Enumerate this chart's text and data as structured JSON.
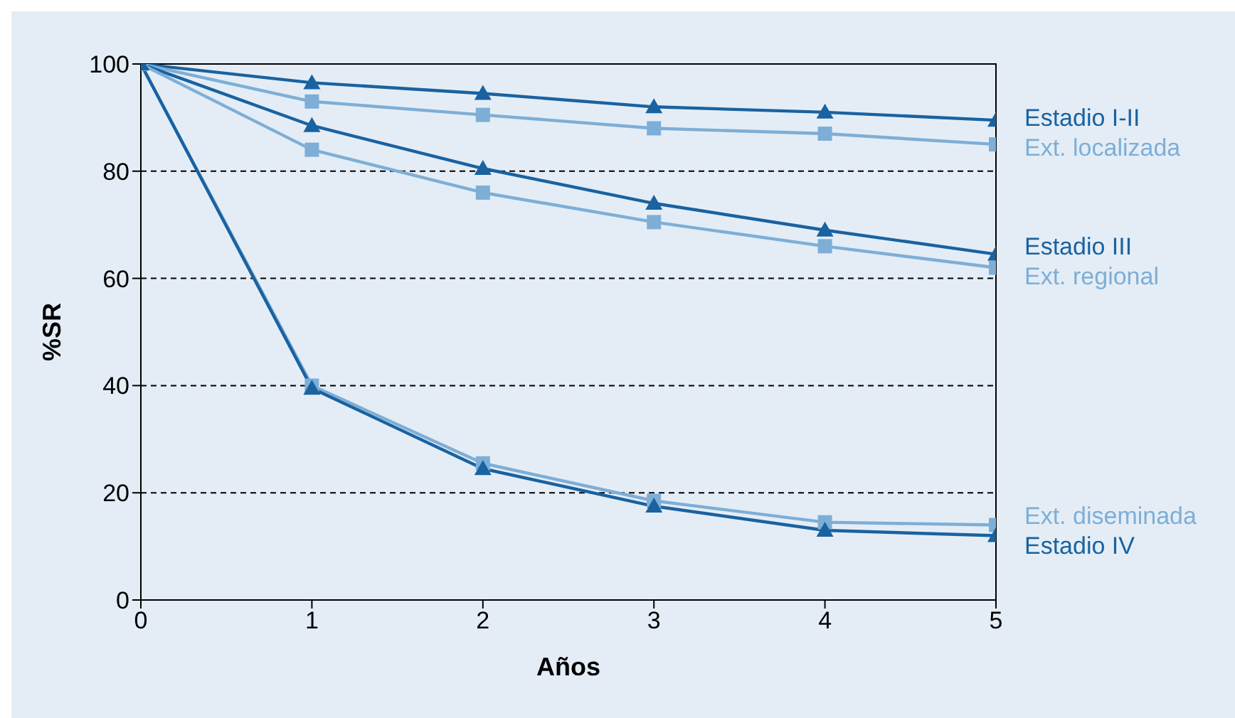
{
  "chart_data": {
    "type": "line",
    "xlabel": "Años",
    "ylabel": "%SR",
    "x": [
      0,
      1,
      2,
      3,
      4,
      5
    ],
    "xlim": [
      0,
      5
    ],
    "xticks": [
      0,
      1,
      2,
      3,
      4,
      5
    ],
    "ylim": [
      0,
      100
    ],
    "yticks": [
      0,
      20,
      40,
      60,
      80,
      100
    ],
    "grid": "y",
    "legend": false,
    "line_style": "solid",
    "series": [
      {
        "name": "Estadio I-II",
        "color": "#1a62a0",
        "marker": "triangle",
        "values": [
          100,
          96.5,
          94.5,
          92,
          91,
          89.5
        ]
      },
      {
        "name": "Ext. localizada",
        "color": "#7eaed6",
        "marker": "square",
        "values": [
          100,
          93,
          90.5,
          88,
          87,
          85
        ]
      },
      {
        "name": "Estadio III",
        "color": "#1a62a0",
        "marker": "triangle",
        "values": [
          100,
          88.5,
          80.5,
          74,
          69,
          64.5
        ]
      },
      {
        "name": "Ext. regional",
        "color": "#7eaed6",
        "marker": "square",
        "values": [
          100,
          84,
          76,
          70.5,
          66,
          62
        ]
      },
      {
        "name": "Ext. diseminada",
        "color": "#7eaed6",
        "marker": "square",
        "values": [
          100,
          40,
          25.5,
          18.5,
          14.5,
          14
        ]
      },
      {
        "name": "Estadio IV",
        "color": "#1a62a0",
        "marker": "triangle",
        "values": [
          100,
          39.5,
          24.5,
          17.5,
          13,
          12
        ]
      }
    ]
  }
}
